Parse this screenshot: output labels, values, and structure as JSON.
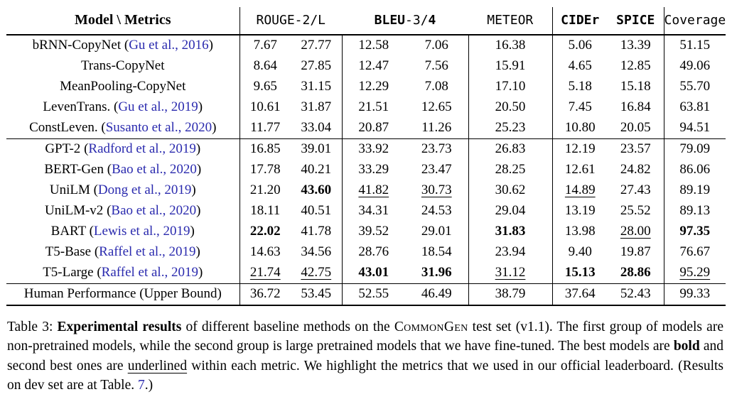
{
  "colors": {
    "citation": "#2a2aae"
  },
  "table": {
    "header": {
      "model": "Model \\ Metrics",
      "rouge": "ROUGE-2/L",
      "bleu_segments": [
        {
          "t": "BLEU",
          "s": "b"
        },
        {
          "t": "-3/"
        },
        {
          "t": "4",
          "s": "b"
        }
      ],
      "meteor": "METEOR",
      "cider": "CIDEr",
      "spice": "SPICE",
      "coverage": "Coverage"
    },
    "groups": {
      "non_pretrained": [
        {
          "model": "bRNN-CopyNet",
          "cite": "Gu et al., 2016",
          "values": [
            {
              "v": "7.67"
            },
            {
              "v": "27.77"
            },
            {
              "v": "12.58"
            },
            {
              "v": "7.06"
            },
            {
              "v": "16.38"
            },
            {
              "v": "5.06"
            },
            {
              "v": "13.39"
            },
            {
              "v": "51.15"
            }
          ]
        },
        {
          "model": "Trans-CopyNet",
          "values": [
            {
              "v": "8.64"
            },
            {
              "v": "27.85"
            },
            {
              "v": "12.47"
            },
            {
              "v": "7.56"
            },
            {
              "v": "15.91"
            },
            {
              "v": "4.65"
            },
            {
              "v": "12.85"
            },
            {
              "v": "49.06"
            }
          ]
        },
        {
          "model": "MeanPooling-CopyNet",
          "values": [
            {
              "v": "9.65"
            },
            {
              "v": "31.15"
            },
            {
              "v": "12.29"
            },
            {
              "v": "7.08"
            },
            {
              "v": "17.10"
            },
            {
              "v": "5.18"
            },
            {
              "v": "15.18"
            },
            {
              "v": "55.70"
            }
          ]
        },
        {
          "model": "LevenTrans.",
          "cite": "Gu et al., 2019",
          "values": [
            {
              "v": "10.61"
            },
            {
              "v": "31.87"
            },
            {
              "v": "21.51"
            },
            {
              "v": "12.65"
            },
            {
              "v": "20.50"
            },
            {
              "v": "7.45"
            },
            {
              "v": "16.84"
            },
            {
              "v": "63.81"
            }
          ]
        },
        {
          "model": "ConstLeven.",
          "cite": "Susanto et al., 2020",
          "values": [
            {
              "v": "11.77"
            },
            {
              "v": "33.04"
            },
            {
              "v": "20.87"
            },
            {
              "v": "11.26"
            },
            {
              "v": "25.23"
            },
            {
              "v": "10.80"
            },
            {
              "v": "20.05"
            },
            {
              "v": "94.51"
            }
          ]
        }
      ],
      "pretrained": [
        {
          "model": "GPT-2",
          "cite": "Radford et al., 2019",
          "values": [
            {
              "v": "16.85"
            },
            {
              "v": "39.01"
            },
            {
              "v": "33.92"
            },
            {
              "v": "23.73"
            },
            {
              "v": "26.83"
            },
            {
              "v": "12.19"
            },
            {
              "v": "23.57"
            },
            {
              "v": "79.09"
            }
          ]
        },
        {
          "model": "BERT-Gen",
          "cite": "Bao et al., 2020",
          "values": [
            {
              "v": "17.78"
            },
            {
              "v": "40.21"
            },
            {
              "v": "33.29"
            },
            {
              "v": "23.47"
            },
            {
              "v": "28.25"
            },
            {
              "v": "12.61"
            },
            {
              "v": "24.82"
            },
            {
              "v": "86.06"
            }
          ]
        },
        {
          "model": "UniLM",
          "cite": "Dong et al., 2019",
          "values": [
            {
              "v": "21.20"
            },
            {
              "v": "43.60",
              "s": "b"
            },
            {
              "v": "41.82",
              "s": "u"
            },
            {
              "v": "30.73",
              "s": "u"
            },
            {
              "v": "30.62"
            },
            {
              "v": "14.89",
              "s": "u"
            },
            {
              "v": "27.43"
            },
            {
              "v": "89.19"
            }
          ]
        },
        {
          "model": "UniLM-v2",
          "cite": "Bao et al., 2020",
          "values": [
            {
              "v": "18.11"
            },
            {
              "v": "40.51"
            },
            {
              "v": "34.31"
            },
            {
              "v": "24.53"
            },
            {
              "v": "29.04"
            },
            {
              "v": "13.19"
            },
            {
              "v": "25.52"
            },
            {
              "v": "89.13"
            }
          ]
        },
        {
          "model": "BART",
          "cite": "Lewis et al., 2019",
          "values": [
            {
              "v": "22.02",
              "s": "b"
            },
            {
              "v": "41.78"
            },
            {
              "v": "39.52"
            },
            {
              "v": "29.01"
            },
            {
              "v": "31.83",
              "s": "b"
            },
            {
              "v": "13.98"
            },
            {
              "v": "28.00",
              "s": "u"
            },
            {
              "v": "97.35",
              "s": "b"
            }
          ]
        },
        {
          "model": "T5-Base",
          "cite": "Raffel et al., 2019",
          "values": [
            {
              "v": "14.63"
            },
            {
              "v": "34.56"
            },
            {
              "v": "28.76"
            },
            {
              "v": "18.54"
            },
            {
              "v": "23.94"
            },
            {
              "v": "9.40"
            },
            {
              "v": "19.87"
            },
            {
              "v": "76.67"
            }
          ]
        },
        {
          "model": "T5-Large",
          "cite": "Raffel et al., 2019",
          "values": [
            {
              "v": "21.74",
              "s": "u"
            },
            {
              "v": "42.75",
              "s": "u"
            },
            {
              "v": "43.01",
              "s": "b"
            },
            {
              "v": "31.96",
              "s": "b"
            },
            {
              "v": "31.12",
              "s": "u"
            },
            {
              "v": "15.13",
              "s": "b"
            },
            {
              "v": "28.86",
              "s": "b"
            },
            {
              "v": "95.29",
              "s": "u"
            }
          ]
        }
      ],
      "human": [
        {
          "model": "Human Performance (Upper Bound)",
          "values": [
            {
              "v": "36.72"
            },
            {
              "v": "53.45"
            },
            {
              "v": "52.55"
            },
            {
              "v": "46.49"
            },
            {
              "v": "38.79"
            },
            {
              "v": "37.64"
            },
            {
              "v": "52.43"
            },
            {
              "v": "99.33"
            }
          ]
        }
      ]
    }
  },
  "caption": {
    "segments": [
      {
        "t": "Table 3: "
      },
      {
        "t": "Experimental results",
        "s": "b"
      },
      {
        "t": " of different baseline methods on the "
      },
      {
        "t": "CommonGen",
        "s": "sc"
      },
      {
        "t": " test set (v1.1). The first group of models are non-pretrained models, while the second group is large pretrained models that we have fine-tuned. The best models are "
      },
      {
        "t": "bold",
        "s": "b"
      },
      {
        "t": " and second best ones are "
      },
      {
        "t": "underlined",
        "s": "u"
      },
      {
        "t": " within each metric. We highlight the metrics that we used in our official leaderboard. (Results on dev set are at Table. "
      },
      {
        "t": "7",
        "s": "link"
      },
      {
        "t": ".)"
      }
    ]
  }
}
